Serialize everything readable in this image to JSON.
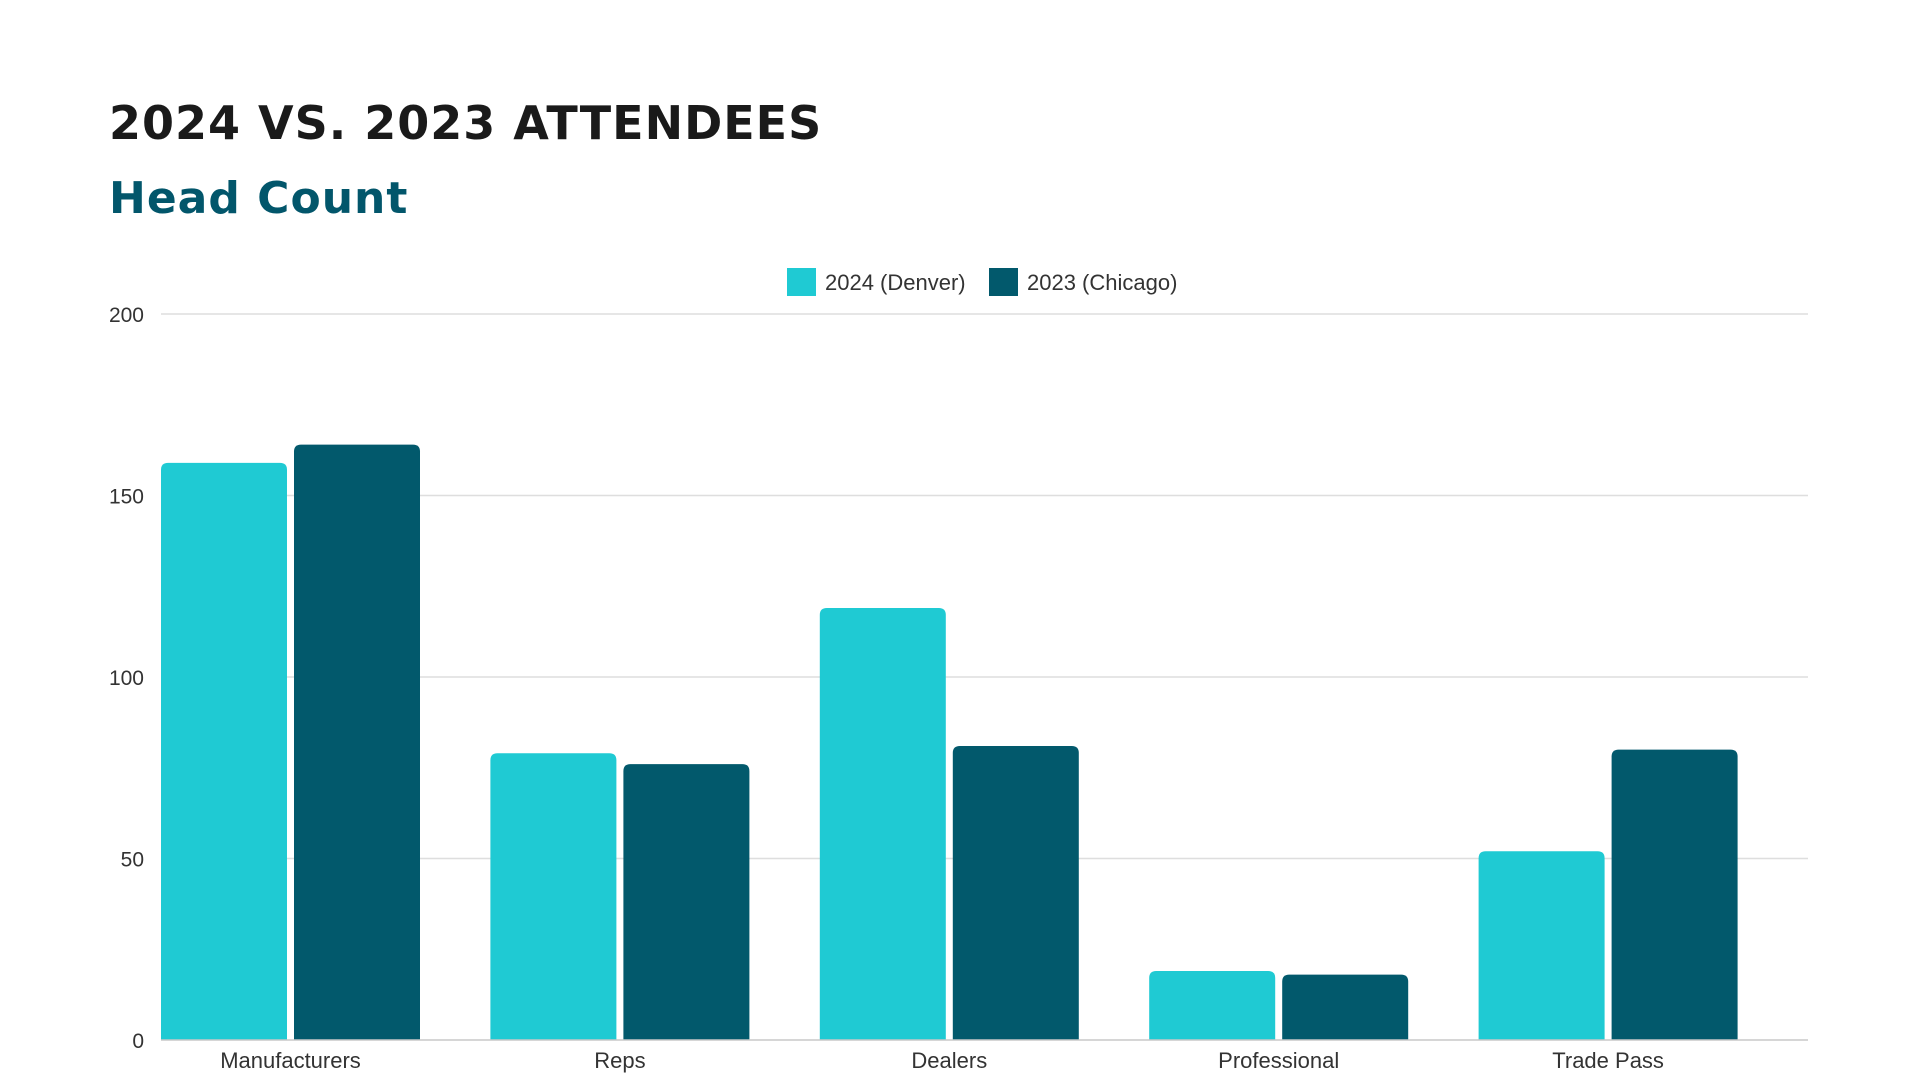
{
  "title": "2024 VS. 2023 ATTENDEES",
  "subtitle": "Head Count",
  "colors": {
    "title": "#1a1a1a",
    "subtitle": "#02566b",
    "series_2024": "#1fcad3",
    "series_2023": "#02596c",
    "gridline": "#dedede",
    "axis_text": "#333333"
  },
  "chart_data": {
    "type": "bar",
    "categories": [
      "Manufacturers",
      "Reps",
      "Dealers",
      "Professional",
      "Trade Pass"
    ],
    "series": [
      {
        "name": "2024 (Denver)",
        "color": "#1fcad3",
        "values": [
          159,
          79,
          119,
          19,
          52
        ]
      },
      {
        "name": "2023 (Chicago)",
        "color": "#02596c",
        "values": [
          164,
          76,
          81,
          18,
          80
        ]
      }
    ],
    "ylim": [
      0,
      200
    ],
    "yticks": [
      0,
      50,
      100,
      150,
      200
    ],
    "xlabel": "",
    "ylabel": "",
    "grid": true,
    "legend": "top-center"
  }
}
